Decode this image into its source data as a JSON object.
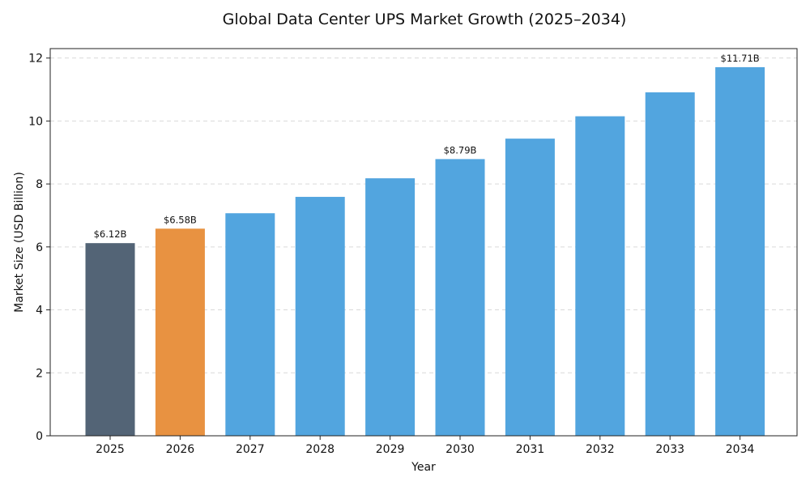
{
  "chart_data": {
    "type": "bar",
    "title": "Global Data Center UPS Market Growth (2025–2034)",
    "xlabel": "Year",
    "ylabel": "Market Size (USD Billion)",
    "categories": [
      "2025",
      "2026",
      "2027",
      "2028",
      "2029",
      "2030",
      "2031",
      "2032",
      "2033",
      "2034"
    ],
    "values": [
      6.12,
      6.58,
      7.07,
      7.59,
      8.18,
      8.79,
      9.44,
      10.15,
      10.91,
      11.71
    ],
    "bar_colors": [
      "#536476",
      "#e89241",
      "#52a5df",
      "#52a5df",
      "#52a5df",
      "#52a5df",
      "#52a5df",
      "#52a5df",
      "#52a5df",
      "#52a5df"
    ],
    "data_labels": [
      {
        "index": 0,
        "text": "$6.12B"
      },
      {
        "index": 1,
        "text": "$6.58B"
      },
      {
        "index": 5,
        "text": "$8.79B"
      },
      {
        "index": 9,
        "text": "$11.71B"
      }
    ],
    "ylim": [
      0,
      12.3
    ],
    "yticks": [
      0,
      2,
      4,
      6,
      8,
      10,
      12
    ],
    "grid": "horizontal dashed",
    "legend": "none"
  }
}
